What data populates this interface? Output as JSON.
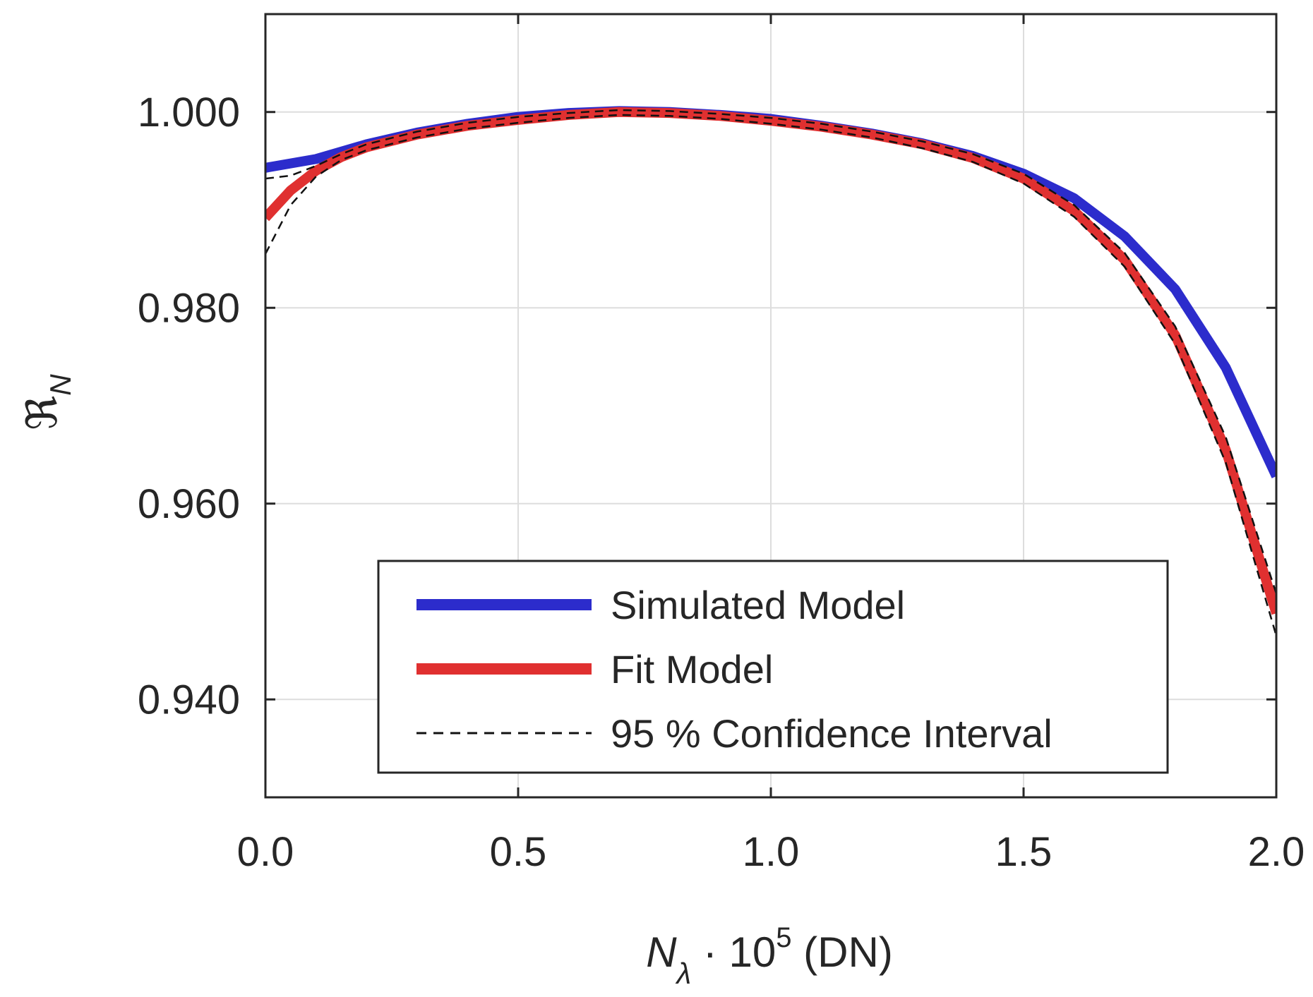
{
  "chart_data": {
    "type": "line",
    "title": "",
    "xlabel": {
      "main": "N",
      "sub": "λ",
      "mid": " · 10",
      "sup": "5",
      "end": " (DN)"
    },
    "ylabel": {
      "main": "ℜ",
      "sub": "N"
    },
    "xlim": [
      0.0,
      2.0
    ],
    "ylim": [
      0.93,
      1.01
    ],
    "xticks": [
      0.0,
      0.5,
      1.0,
      1.5,
      2.0
    ],
    "xtick_labels": [
      "0.0",
      "0.5",
      "1.0",
      "1.5",
      "2.0"
    ],
    "yticks": [
      0.94,
      0.96,
      0.98,
      1.0
    ],
    "ytick_labels": [
      "0.940",
      "0.960",
      "0.980",
      "1.000"
    ],
    "grid": true,
    "legend_position": "bottom-right",
    "series": [
      {
        "name": "Simulated Model",
        "color": "#2c2ccc",
        "style": "solid-thick",
        "x": [
          0.0,
          0.1,
          0.2,
          0.3,
          0.4,
          0.5,
          0.6,
          0.7,
          0.8,
          0.9,
          1.0,
          1.1,
          1.2,
          1.3,
          1.4,
          1.5,
          1.6,
          1.7,
          1.8,
          1.9,
          2.0
        ],
        "y": [
          0.9943,
          0.9952,
          0.9967,
          0.9979,
          0.9988,
          0.9995,
          0.9999,
          1.0001,
          1.0,
          0.9997,
          0.9993,
          0.9986,
          0.9978,
          0.9968,
          0.9955,
          0.9937,
          0.9912,
          0.9873,
          0.9819,
          0.9739,
          0.9628
        ]
      },
      {
        "name": "Fit Model",
        "color": "#e03030",
        "style": "solid-thick",
        "x": [
          0.0,
          0.05,
          0.1,
          0.15,
          0.2,
          0.3,
          0.4,
          0.5,
          0.6,
          0.7,
          0.8,
          0.9,
          1.0,
          1.1,
          1.2,
          1.3,
          1.4,
          1.5,
          1.6,
          1.7,
          1.8,
          1.9,
          2.0
        ],
        "y": [
          0.9892,
          0.992,
          0.994,
          0.9954,
          0.9964,
          0.9977,
          0.9986,
          0.9992,
          0.9997,
          1.0,
          0.9999,
          0.9996,
          0.9991,
          0.9985,
          0.9977,
          0.9967,
          0.9953,
          0.9932,
          0.9899,
          0.9849,
          0.9772,
          0.9655,
          0.9488
        ]
      },
      {
        "name": "95 % Confidence Interval",
        "color": "#111111",
        "style": "dashed",
        "bands": [
          {
            "x": [
              0.0,
              0.05,
              0.1,
              0.15,
              0.2,
              0.3,
              0.4,
              0.5,
              0.6,
              0.7,
              0.8,
              0.9,
              1.0,
              1.1,
              1.2,
              1.3,
              1.4,
              1.5,
              1.6,
              1.7,
              1.8,
              1.9,
              2.0
            ],
            "y": [
              0.9932,
              0.9935,
              0.9945,
              0.9957,
              0.9967,
              0.998,
              0.9989,
              0.9995,
              0.9999,
              1.0002,
              1.0001,
              0.9998,
              0.9994,
              0.9988,
              0.998,
              0.997,
              0.9957,
              0.9937,
              0.9905,
              0.9856,
              0.9781,
              0.9668,
              0.9508
            ]
          },
          {
            "x": [
              0.0,
              0.05,
              0.1,
              0.15,
              0.2,
              0.3,
              0.4,
              0.5,
              0.6,
              0.7,
              0.8,
              0.9,
              1.0,
              1.1,
              1.2,
              1.3,
              1.4,
              1.5,
              1.6,
              1.7,
              1.8,
              1.9,
              2.0
            ],
            "y": [
              0.9855,
              0.9905,
              0.9934,
              0.9951,
              0.9961,
              0.9974,
              0.9983,
              0.9989,
              0.9994,
              0.9997,
              0.9996,
              0.9993,
              0.9988,
              0.9982,
              0.9974,
              0.9963,
              0.9949,
              0.9927,
              0.9893,
              0.9842,
              0.9763,
              0.9642,
              0.9465
            ]
          }
        ]
      }
    ]
  }
}
